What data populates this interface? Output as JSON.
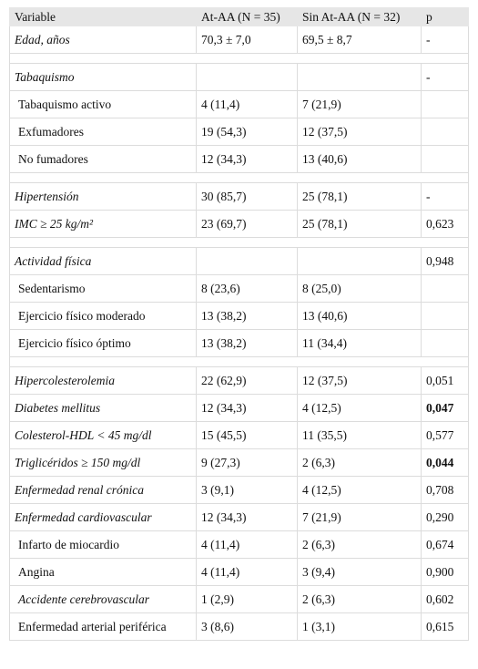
{
  "table": {
    "header": [
      "Variable",
      "At-AA (N = 35)",
      "Sin At-AA (N = 32)",
      "p"
    ],
    "rows": [
      [
        "Edad, años",
        "70,3 ± 7,0",
        "69,5 ± 8,7",
        "-"
      ],
      [
        "Tabaquismo",
        null,
        null,
        "-"
      ],
      [
        "Tabaquismo activo",
        "4 (11,4)",
        "7 (21,9)",
        null
      ],
      [
        "Exfumadores",
        "19 (54,3)",
        "12 (37,5)",
        null
      ],
      [
        "No fumadores",
        "12 (34,3)",
        "13 (40,6)",
        null
      ],
      [
        "Hipertensión",
        "30 (85,7)",
        "25 (78,1)",
        "-"
      ],
      [
        "IMC ≥ 25 kg/m²",
        "23 (69,7)",
        "25 (78,1)",
        "0,623"
      ],
      [
        "Actividad física",
        null,
        null,
        "0,948"
      ],
      [
        "Sedentarismo",
        "8 (23,6)",
        "8 (25,0)",
        null
      ],
      [
        "Ejercicio físico moderado",
        "13 (38,2)",
        "13 (40,6)",
        null
      ],
      [
        "Ejercicio físico óptimo",
        "13 (38,2)",
        "11 (34,4)",
        null
      ],
      [
        "Hipercolesterolemia",
        "22 (62,9)",
        "12 (37,5)",
        "0,051"
      ],
      [
        "Diabetes mellitus",
        "12 (34,3)",
        "4 (12,5)",
        "0,047"
      ],
      [
        "Colesterol-HDL < 45 mg/dl",
        "15 (45,5)",
        "11 (35,5)",
        "0,577"
      ],
      [
        "Triglicéridos ≥ 150 mg/dl",
        "9 (27,3)",
        "2 (6,3)",
        "0,044"
      ],
      [
        "Enfermedad renal crónica",
        "3 (9,1)",
        "4 (12,5)",
        "0,708"
      ],
      [
        "Enfermedad cardiovascular",
        "12 (34,3)",
        "7 (21,9)",
        "0,290"
      ],
      [
        "Infarto de miocardio",
        "4 (11,4)",
        "2 (6,3)",
        "0,674"
      ],
      [
        "Angina",
        "4 (11,4)",
        "3 (9,4)",
        "0,900"
      ],
      [
        "Accidente cerebrovascular",
        "1 (2,9)",
        "2 (6,3)",
        "0,602"
      ],
      [
        "Enfermedad arterial periférica",
        "3 (8,6)",
        "1 (3,1)",
        "0,615"
      ]
    ]
  }
}
